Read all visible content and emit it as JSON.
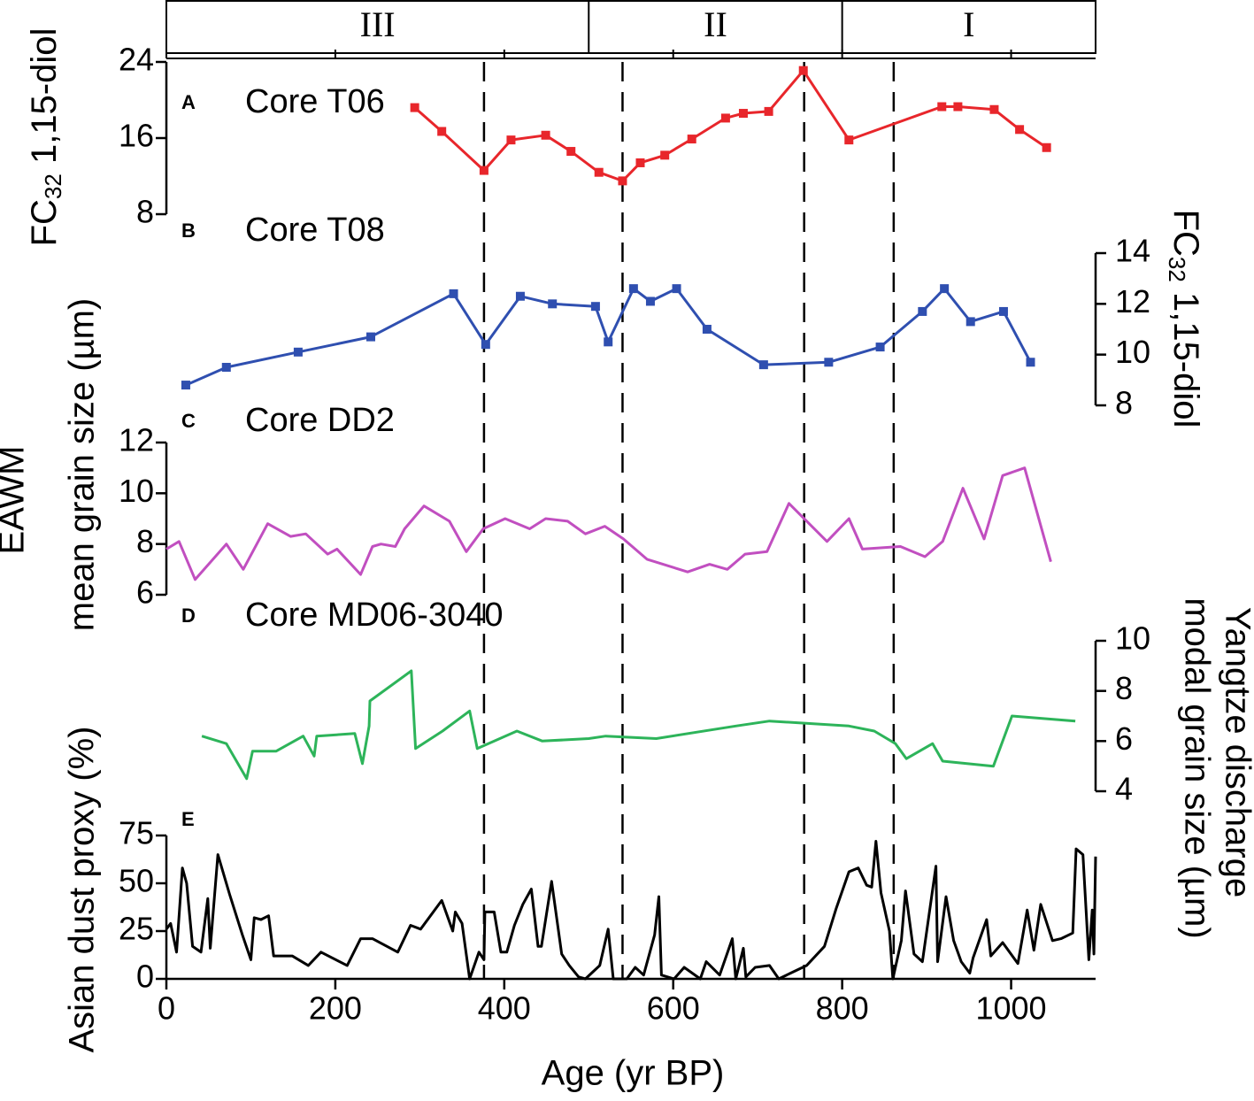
{
  "chart_data": {
    "type": "line",
    "xlabel": "Age (yr BP)",
    "xlim": [
      0,
      1100
    ],
    "xticks": [
      0,
      200,
      400,
      600,
      800,
      1000
    ],
    "left_labels": [
      "EAWM",
      "mean grain size (µm)",
      "Asian dust proxy (%)"
    ],
    "right_labels": [
      "Yangtze discharge",
      "modal grain size (µm)"
    ],
    "zones": [
      {
        "label": "III",
        "start": 0,
        "end": 500
      },
      {
        "label": "II",
        "start": 500,
        "end": 800
      },
      {
        "label": "I",
        "start": 800,
        "end": 1100
      }
    ],
    "dashed_lines": [
      376,
      540,
      755,
      861
    ],
    "panels": [
      {
        "letter": "A",
        "title": "Core T06",
        "axis": "left",
        "color": "#e8262b",
        "markers": true,
        "ylabel": {
          "main": "FC",
          "sub": "32",
          "rest": " 1,15-diol"
        },
        "ylim": [
          8,
          24
        ],
        "yticks": [
          8,
          16,
          24
        ],
        "x": [
          294,
          326,
          376,
          408,
          449,
          479,
          512,
          540,
          561,
          590,
          622,
          662,
          683,
          713,
          754,
          808,
          918,
          937,
          980,
          1010,
          1042
        ],
        "values": [
          19.2,
          16.7,
          12.6,
          15.8,
          16.3,
          14.6,
          12.4,
          11.5,
          13.4,
          14.2,
          15.9,
          18.1,
          18.6,
          18.8,
          23.1,
          15.8,
          19.3,
          19.3,
          19.0,
          16.9,
          15.0
        ]
      },
      {
        "letter": "B",
        "title": "Core T08",
        "axis": "right",
        "color": "#2f4fb0",
        "markers": true,
        "ylabel": {
          "main": "FC",
          "sub": "32",
          "rest": " 1,15-diol"
        },
        "ylim": [
          8,
          14
        ],
        "yticks": [
          8,
          10,
          12,
          14
        ],
        "x": [
          23,
          71,
          156,
          242,
          340,
          378,
          419,
          457,
          508,
          523,
          553,
          573,
          604,
          640,
          707,
          784,
          845,
          895,
          921,
          952,
          991,
          1023
        ],
        "values": [
          8.8,
          9.5,
          10.1,
          10.7,
          12.4,
          10.4,
          12.3,
          12.0,
          11.9,
          10.5,
          12.6,
          12.1,
          12.6,
          11.0,
          9.6,
          9.7,
          10.3,
          11.7,
          12.6,
          11.3,
          11.7,
          9.7
        ]
      },
      {
        "letter": "C",
        "title": "Core DD2",
        "axis": "left",
        "color": "#c14fc0",
        "markers": false,
        "ylim": [
          6,
          12
        ],
        "yticks": [
          6,
          8,
          10,
          12
        ],
        "x": [
          0,
          15,
          34,
          71,
          91,
          120,
          147,
          165,
          191,
          202,
          230,
          244,
          254,
          271,
          282,
          305,
          335,
          355,
          375,
          401,
          430,
          449,
          475,
          496,
          519,
          541,
          569,
          617,
          643,
          664,
          685,
          711,
          737,
          782,
          808,
          824,
          869,
          898,
          919,
          943,
          968,
          990,
          1016,
          1047
        ],
        "values": [
          7.8,
          8.1,
          6.6,
          8.0,
          7.0,
          8.8,
          8.3,
          8.4,
          7.6,
          7.8,
          6.8,
          7.9,
          8.0,
          7.9,
          8.6,
          9.5,
          8.9,
          7.7,
          8.6,
          9.0,
          8.6,
          9.0,
          8.9,
          8.4,
          8.7,
          8.2,
          7.4,
          6.9,
          7.2,
          7.0,
          7.6,
          7.7,
          9.6,
          8.1,
          9.0,
          7.8,
          7.9,
          7.5,
          8.1,
          10.2,
          8.2,
          10.7,
          11.0,
          7.3
        ]
      },
      {
        "letter": "D",
        "title": "Core MD06-3040",
        "axis": "right",
        "color": "#2db45a",
        "markers": false,
        "ylim": [
          4,
          10
        ],
        "yticks": [
          4,
          6,
          8,
          10
        ],
        "x": [
          42,
          71,
          95,
          102,
          130,
          162,
          175,
          178,
          223,
          232,
          240,
          241,
          290,
          295,
          327,
          359,
          368,
          415,
          445,
          500,
          520,
          580,
          674,
          714,
          808,
          838,
          863,
          876,
          907,
          919,
          979,
          1001,
          1076
        ],
        "values": [
          6.2,
          5.9,
          4.5,
          5.6,
          5.6,
          6.2,
          5.4,
          6.2,
          6.3,
          5.1,
          6.6,
          7.6,
          8.8,
          5.7,
          6.4,
          7.2,
          5.7,
          6.4,
          6.0,
          6.1,
          6.2,
          6.1,
          6.6,
          6.8,
          6.6,
          6.4,
          5.9,
          5.3,
          5.9,
          5.2,
          5.0,
          7.0,
          6.8
        ]
      },
      {
        "letter": "E",
        "axis": "left",
        "color": "#000000",
        "markers": false,
        "ylim": [
          0,
          75
        ],
        "yticks": [
          0,
          25,
          50,
          75
        ],
        "x": [
          0,
          5,
          12,
          19,
          24,
          31,
          41,
          49,
          52,
          61,
          75,
          90,
          100,
          104,
          112,
          121,
          127,
          149,
          168,
          183,
          214,
          230,
          244,
          274,
          289,
          301,
          326,
          339,
          342,
          350,
          359,
          370,
          376,
          377,
          388,
          396,
          403,
          412,
          422,
          432,
          440,
          444,
          456,
          468,
          477,
          488,
          496,
          513,
          523,
          529,
          545,
          555,
          565,
          578,
          583,
          586,
          601,
          613,
          632,
          639,
          655,
          670,
          674,
          683,
          686,
          697,
          714,
          725,
          739,
          758,
          779,
          793,
          808,
          819,
          829,
          835,
          840,
          846,
          856,
          860,
          870,
          875,
          885,
          895,
          911,
          913,
          923,
          932,
          941,
          951,
          955,
          971,
          976,
          990,
          1008,
          1019,
          1027,
          1035,
          1049,
          1059,
          1073,
          1077,
          1085,
          1092,
          1096,
          1098,
          1100
        ],
        "values": [
          26,
          29,
          14,
          58,
          50,
          17,
          14,
          42,
          16,
          65,
          44,
          23,
          10,
          32,
          31,
          33,
          12,
          12,
          7,
          14,
          7,
          21,
          21,
          14,
          28,
          26,
          41,
          25,
          35,
          29,
          0,
          14,
          10,
          35,
          35,
          14,
          14,
          28,
          39,
          47,
          17,
          17,
          51,
          13,
          7,
          1,
          0,
          7,
          26,
          0,
          0,
          6,
          2,
          23,
          43,
          2,
          0,
          6,
          0,
          9,
          2,
          21,
          0,
          16,
          1,
          6,
          7,
          0,
          3,
          7,
          17,
          37,
          56,
          58,
          49,
          48,
          72,
          45,
          25,
          0,
          20,
          46,
          13,
          9,
          59,
          9,
          43,
          20,
          9,
          3,
          11,
          31,
          12,
          19,
          8,
          36,
          15,
          39,
          20,
          21,
          24,
          68,
          65,
          10,
          36,
          13,
          64
        ]
      }
    ]
  }
}
